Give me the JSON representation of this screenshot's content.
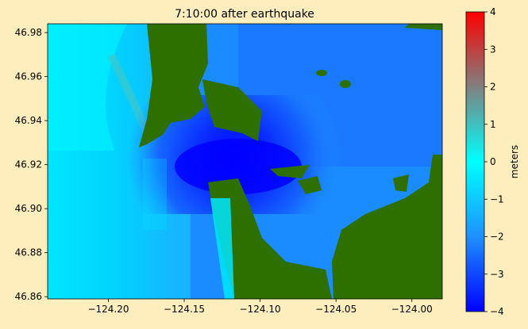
{
  "chart_data": {
    "type": "heatmap",
    "title": "7:10:00 after earthquake",
    "xlabel": "",
    "ylabel": "",
    "xlim": [
      -124.24,
      -123.98
    ],
    "ylim": [
      46.859,
      46.984
    ],
    "x_ticks": [
      {
        "value": -124.2,
        "label": "−124.20"
      },
      {
        "value": -124.15,
        "label": "−124.15"
      },
      {
        "value": -124.1,
        "label": "−124.10"
      },
      {
        "value": -124.05,
        "label": "−124.05"
      },
      {
        "value": -124.0,
        "label": "−124.00"
      }
    ],
    "y_ticks": [
      {
        "value": 46.86,
        "label": "46.86"
      },
      {
        "value": 46.88,
        "label": "46.88"
      },
      {
        "value": 46.9,
        "label": "46.90"
      },
      {
        "value": 46.92,
        "label": "46.92"
      },
      {
        "value": 46.94,
        "label": "46.94"
      },
      {
        "value": 46.96,
        "label": "46.96"
      },
      {
        "value": 46.98,
        "label": "46.98"
      }
    ],
    "colorbar": {
      "label": "meters",
      "min": -4,
      "max": 4,
      "ticks": [
        {
          "value": 4,
          "label": "4"
        },
        {
          "value": 3,
          "label": "3"
        },
        {
          "value": 2,
          "label": "2"
        },
        {
          "value": 1,
          "label": "1"
        },
        {
          "value": 0,
          "label": "0"
        },
        {
          "value": -1,
          "label": "−1"
        },
        {
          "value": -2,
          "label": "−2"
        },
        {
          "value": -3,
          "label": "−3"
        },
        {
          "value": -4,
          "label": "−4"
        }
      ],
      "colors": [
        "#0000ff",
        "#1e90ff",
        "#00ffff",
        "#808080",
        "#ff0000"
      ]
    },
    "land_color": "#2d7000",
    "grid": false
  }
}
